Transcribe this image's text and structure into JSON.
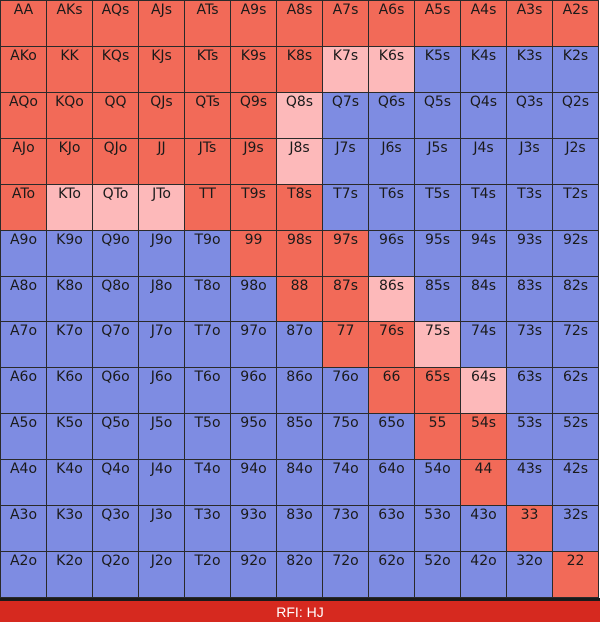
{
  "colors": {
    "raise": "#f26a58",
    "mixed": "#fdb9ba",
    "fold": "#7e8ce2",
    "footer_bg": "#d6291f"
  },
  "hands": [
    [
      "AA",
      "AKs",
      "AQs",
      "AJs",
      "ATs",
      "A9s",
      "A8s",
      "A7s",
      "A6s",
      "A5s",
      "A4s",
      "A3s",
      "A2s"
    ],
    [
      "AKo",
      "KK",
      "KQs",
      "KJs",
      "KTs",
      "K9s",
      "K8s",
      "K7s",
      "K6s",
      "K5s",
      "K4s",
      "K3s",
      "K2s"
    ],
    [
      "AQo",
      "KQo",
      "QQ",
      "QJs",
      "QTs",
      "Q9s",
      "Q8s",
      "Q7s",
      "Q6s",
      "Q5s",
      "Q4s",
      "Q3s",
      "Q2s"
    ],
    [
      "AJo",
      "KJo",
      "QJo",
      "JJ",
      "JTs",
      "J9s",
      "J8s",
      "J7s",
      "J6s",
      "J5s",
      "J4s",
      "J3s",
      "J2s"
    ],
    [
      "ATo",
      "KTo",
      "QTo",
      "JTo",
      "TT",
      "T9s",
      "T8s",
      "T7s",
      "T6s",
      "T5s",
      "T4s",
      "T3s",
      "T2s"
    ],
    [
      "A9o",
      "K9o",
      "Q9o",
      "J9o",
      "T9o",
      "99",
      "98s",
      "97s",
      "96s",
      "95s",
      "94s",
      "93s",
      "92s"
    ],
    [
      "A8o",
      "K8o",
      "Q8o",
      "J8o",
      "T8o",
      "98o",
      "88",
      "87s",
      "86s",
      "85s",
      "84s",
      "83s",
      "82s"
    ],
    [
      "A7o",
      "K7o",
      "Q7o",
      "J7o",
      "T7o",
      "97o",
      "87o",
      "77",
      "76s",
      "75s",
      "74s",
      "73s",
      "72s"
    ],
    [
      "A6o",
      "K6o",
      "Q6o",
      "J6o",
      "T6o",
      "96o",
      "86o",
      "76o",
      "66",
      "65s",
      "64s",
      "63s",
      "62s"
    ],
    [
      "A5o",
      "K5o",
      "Q5o",
      "J5o",
      "T5o",
      "95o",
      "85o",
      "75o",
      "65o",
      "55",
      "54s",
      "53s",
      "52s"
    ],
    [
      "A4o",
      "K4o",
      "Q4o",
      "J4o",
      "T4o",
      "94o",
      "84o",
      "74o",
      "64o",
      "54o",
      "44",
      "43s",
      "42s"
    ],
    [
      "A3o",
      "K3o",
      "Q3o",
      "J3o",
      "T3o",
      "93o",
      "83o",
      "73o",
      "63o",
      "53o",
      "43o",
      "33",
      "32s"
    ],
    [
      "A2o",
      "K2o",
      "Q2o",
      "J2o",
      "T2o",
      "92o",
      "82o",
      "72o",
      "62o",
      "52o",
      "42o",
      "32o",
      "22"
    ]
  ],
  "actions": [
    [
      "R",
      "R",
      "R",
      "R",
      "R",
      "R",
      "R",
      "R",
      "R",
      "R",
      "R",
      "R",
      "R"
    ],
    [
      "R",
      "R",
      "R",
      "R",
      "R",
      "R",
      "R",
      "M",
      "M",
      "F",
      "F",
      "F",
      "F"
    ],
    [
      "R",
      "R",
      "R",
      "R",
      "R",
      "R",
      "M",
      "F",
      "F",
      "F",
      "F",
      "F",
      "F"
    ],
    [
      "R",
      "R",
      "R",
      "R",
      "R",
      "R",
      "M",
      "F",
      "F",
      "F",
      "F",
      "F",
      "F"
    ],
    [
      "R",
      "M",
      "M",
      "M",
      "R",
      "R",
      "R",
      "F",
      "F",
      "F",
      "F",
      "F",
      "F"
    ],
    [
      "F",
      "F",
      "F",
      "F",
      "F",
      "R",
      "R",
      "R",
      "F",
      "F",
      "F",
      "F",
      "F"
    ],
    [
      "F",
      "F",
      "F",
      "F",
      "F",
      "F",
      "R",
      "R",
      "M",
      "F",
      "F",
      "F",
      "F"
    ],
    [
      "F",
      "F",
      "F",
      "F",
      "F",
      "F",
      "F",
      "R",
      "R",
      "M",
      "F",
      "F",
      "F"
    ],
    [
      "F",
      "F",
      "F",
      "F",
      "F",
      "F",
      "F",
      "F",
      "R",
      "R",
      "M",
      "F",
      "F"
    ],
    [
      "F",
      "F",
      "F",
      "F",
      "F",
      "F",
      "F",
      "F",
      "F",
      "R",
      "R",
      "F",
      "F"
    ],
    [
      "F",
      "F",
      "F",
      "F",
      "F",
      "F",
      "F",
      "F",
      "F",
      "F",
      "R",
      "F",
      "F"
    ],
    [
      "F",
      "F",
      "F",
      "F",
      "F",
      "F",
      "F",
      "F",
      "F",
      "F",
      "F",
      "R",
      "F"
    ],
    [
      "F",
      "F",
      "F",
      "F",
      "F",
      "F",
      "F",
      "F",
      "F",
      "F",
      "F",
      "F",
      "R"
    ]
  ],
  "footer": {
    "label": "RFI: HJ"
  }
}
